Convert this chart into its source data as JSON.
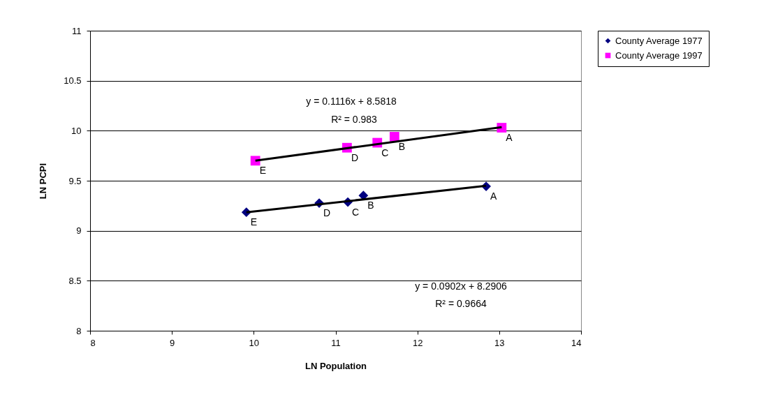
{
  "chart_data": {
    "type": "scatter",
    "xlabel": "LN Population",
    "ylabel": "LN PCPI",
    "xlim": [
      8,
      14
    ],
    "ylim": [
      8,
      11
    ],
    "xticks": [
      8,
      9,
      10,
      11,
      12,
      13,
      14
    ],
    "yticks": [
      8,
      8.5,
      9,
      9.5,
      10,
      10.5,
      11
    ],
    "grid": "y",
    "legend": "right",
    "series": [
      {
        "name": "County Average 1977",
        "color": "#000080",
        "marker": "diamond",
        "x": [
          9.91,
          10.8,
          11.15,
          11.34,
          12.84
        ],
        "values": [
          9.185,
          9.276,
          9.287,
          9.352,
          9.444
        ],
        "value_labels": [
          "E",
          "D",
          "C",
          "B",
          "A"
        ]
      },
      {
        "name": "County Average 1997",
        "color": "#ff00ff",
        "marker": "square",
        "x": [
          10.02,
          11.14,
          11.51,
          11.72,
          13.03
        ],
        "values": [
          9.7,
          9.83,
          9.88,
          9.94,
          10.03
        ],
        "value_labels": [
          "E",
          "D",
          "C",
          "B",
          "A"
        ]
      },
      {
        "type": "line",
        "color": "#000000",
        "x": [
          9.91,
          12.84
        ],
        "values": [
          9.184,
          9.449
        ]
      },
      {
        "type": "line",
        "color": "#000000",
        "x": [
          10.02,
          13.03
        ],
        "values": [
          9.7,
          10.036
        ]
      }
    ],
    "annotations": [
      "y = 0.0902x + 8.2906",
      "R² = 0.9664",
      "y = 0.1116x + 8.5818",
      "R² = 0.983"
    ]
  }
}
